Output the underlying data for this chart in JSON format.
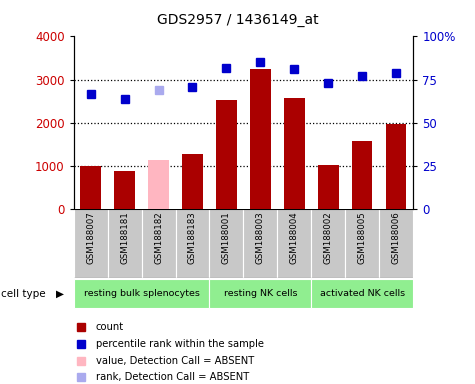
{
  "title": "GDS2957 / 1436149_at",
  "samples": [
    "GSM188007",
    "GSM188181",
    "GSM188182",
    "GSM188183",
    "GSM188001",
    "GSM188003",
    "GSM188004",
    "GSM188002",
    "GSM188005",
    "GSM188006"
  ],
  "bar_values": [
    1000,
    880,
    1150,
    1280,
    2520,
    3250,
    2580,
    1030,
    1590,
    1970
  ],
  "bar_absent": [
    false,
    false,
    true,
    false,
    false,
    false,
    false,
    false,
    false,
    false
  ],
  "rank_values": [
    67,
    64,
    69,
    71,
    82,
    85,
    81,
    73,
    77,
    79
  ],
  "rank_absent": [
    false,
    false,
    true,
    false,
    false,
    false,
    false,
    false,
    false,
    false
  ],
  "ylim_left": [
    0,
    4000
  ],
  "ylim_right": [
    0,
    100
  ],
  "yticks_left": [
    0,
    1000,
    2000,
    3000,
    4000
  ],
  "ytick_labels_right": [
    "0",
    "25",
    "50",
    "75",
    "100%"
  ],
  "cell_groups": [
    {
      "label": "resting bulk splenocytes",
      "start": 0,
      "end": 4
    },
    {
      "label": "resting NK cells",
      "start": 4,
      "end": 7
    },
    {
      "label": "activated NK cells",
      "start": 7,
      "end": 10
    }
  ],
  "bar_color_present": "#AA0000",
  "bar_color_absent": "#FFB6C1",
  "rank_color_present": "#0000CC",
  "rank_color_absent": "#AAAAEE",
  "tick_area_color": "#C8C8C8",
  "cell_type_color": "#90EE90",
  "legend_items": [
    {
      "label": "count",
      "color": "#AA0000"
    },
    {
      "label": "percentile rank within the sample",
      "color": "#0000CC"
    },
    {
      "label": "value, Detection Call = ABSENT",
      "color": "#FFB6C1"
    },
    {
      "label": "rank, Detection Call = ABSENT",
      "color": "#AAAAEE"
    }
  ],
  "grid_dotted_values": [
    1000,
    2000,
    3000
  ]
}
